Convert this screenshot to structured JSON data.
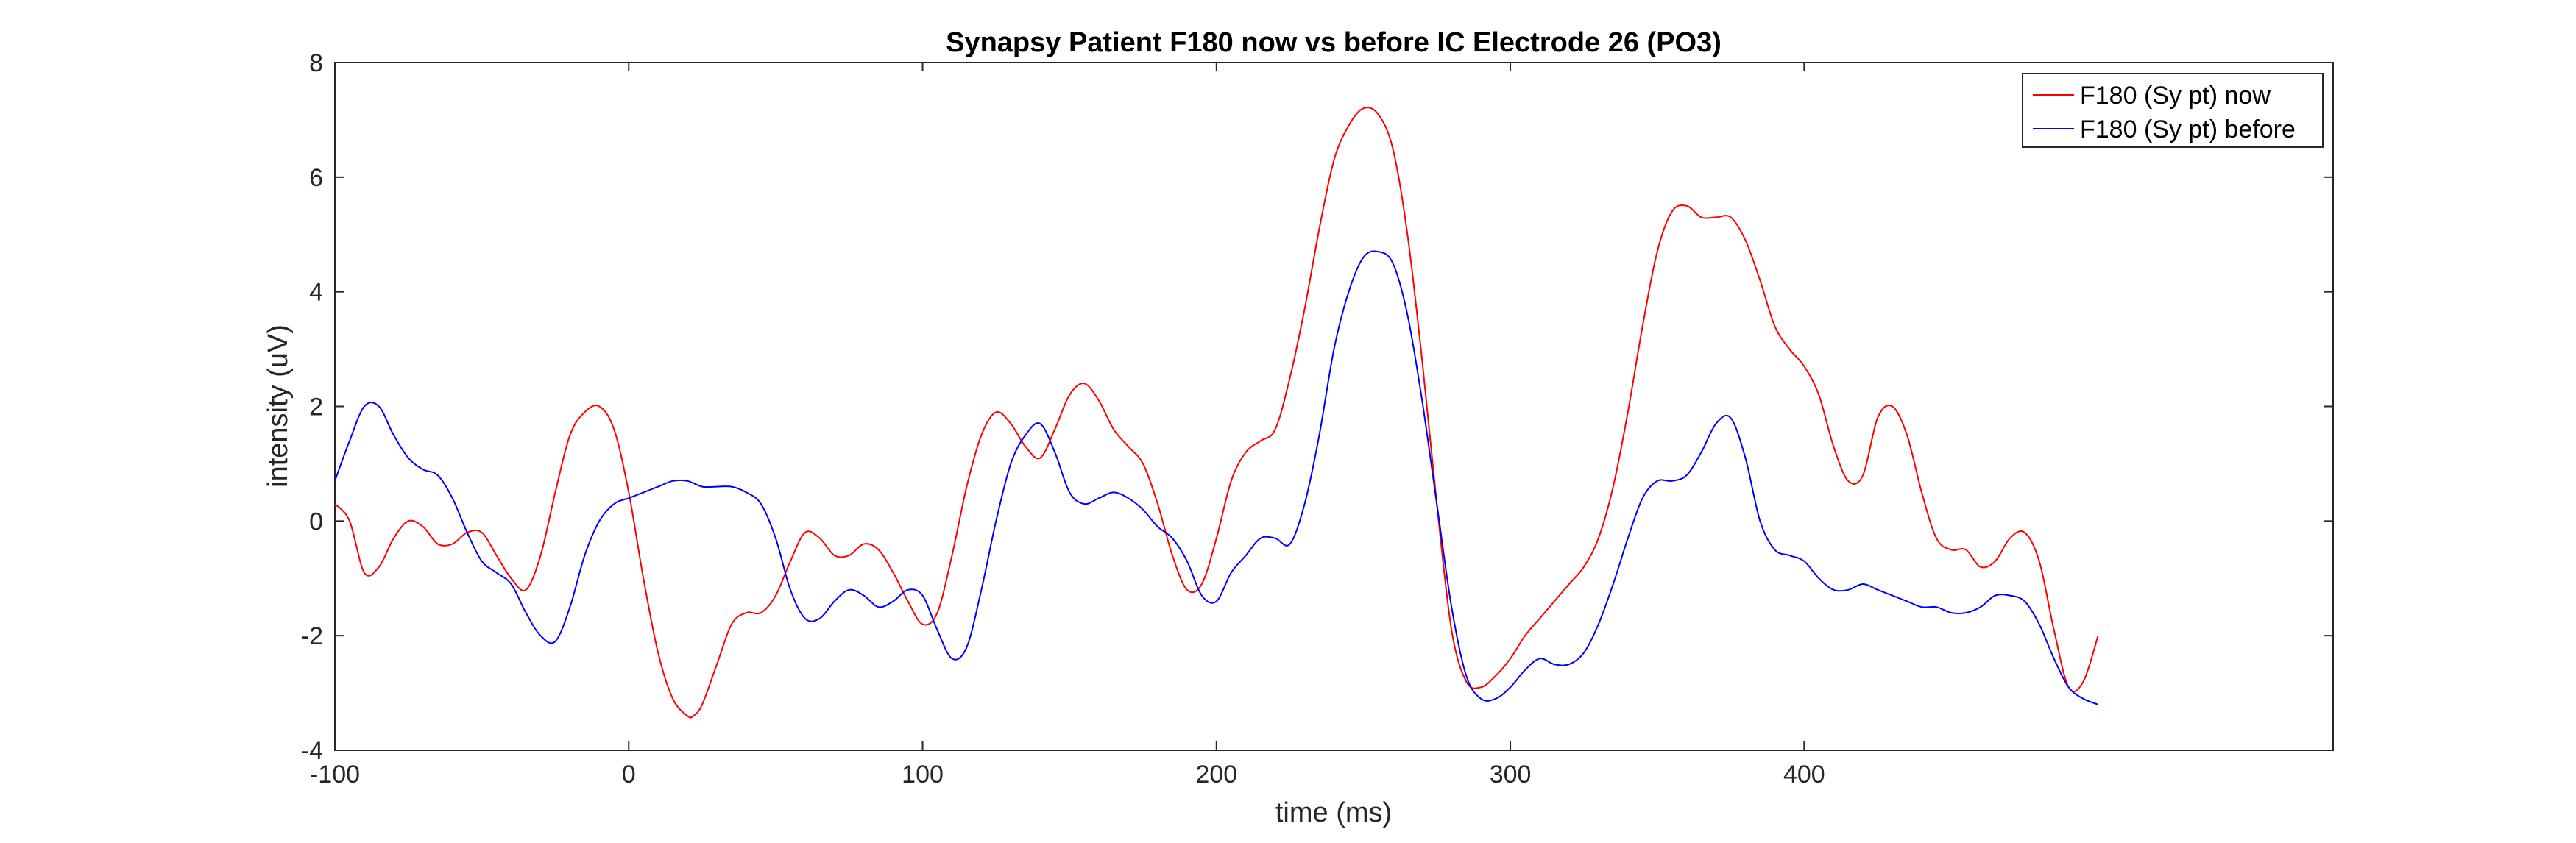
{
  "chart_data": {
    "type": "line",
    "title": "Synapsy Patient F180 now vs before IC Electrode 26 (PO3)",
    "xlabel": "time (ms)",
    "ylabel": "intensity (uV)",
    "xlim": [
      -100,
      580
    ],
    "ylim": [
      -4,
      8
    ],
    "xticks": [
      -100,
      0,
      100,
      200,
      300,
      400
    ],
    "yticks": [
      -4,
      -2,
      0,
      2,
      4,
      6,
      8
    ],
    "grid": false,
    "legend_position": "top-right",
    "series": [
      {
        "name": "F180 (Sy pt) now",
        "color": "#ff0000",
        "x": [
          -100,
          -95,
          -90,
          -85,
          -80,
          -75,
          -70,
          -65,
          -60,
          -55,
          -50,
          -45,
          -40,
          -35,
          -30,
          -25,
          -20,
          -15,
          -10,
          -5,
          0,
          5,
          10,
          15,
          20,
          22,
          25,
          30,
          35,
          40,
          45,
          50,
          55,
          60,
          65,
          70,
          75,
          80,
          85,
          90,
          95,
          100,
          105,
          110,
          115,
          120,
          125,
          130,
          135,
          140,
          145,
          150,
          155,
          160,
          165,
          170,
          175,
          180,
          185,
          190,
          195,
          200,
          205,
          210,
          215,
          220,
          225,
          230,
          235,
          240,
          245,
          250,
          255,
          260,
          265,
          270,
          275,
          280,
          285,
          290,
          295,
          300,
          305,
          310,
          315,
          320,
          325,
          330,
          335,
          340,
          345,
          350,
          355,
          360,
          365,
          370,
          375,
          380,
          385,
          390,
          395,
          400,
          405,
          410,
          415,
          420,
          425,
          430,
          435,
          440,
          445,
          450,
          455,
          460,
          465,
          470,
          475,
          480,
          485,
          490,
          495,
          500
        ],
        "y": [
          0.3,
          0.0,
          -0.9,
          -0.8,
          -0.3,
          0.0,
          -0.1,
          -0.4,
          -0.4,
          -0.2,
          -0.2,
          -0.6,
          -1.0,
          -1.2,
          -0.6,
          0.5,
          1.5,
          1.9,
          2.0,
          1.6,
          0.5,
          -1.0,
          -2.3,
          -3.1,
          -3.4,
          -3.4,
          -3.2,
          -2.5,
          -1.8,
          -1.6,
          -1.6,
          -1.3,
          -0.7,
          -0.2,
          -0.3,
          -0.6,
          -0.6,
          -0.4,
          -0.5,
          -0.9,
          -1.4,
          -1.8,
          -1.6,
          -0.6,
          0.6,
          1.5,
          1.9,
          1.7,
          1.3,
          1.1,
          1.6,
          2.2,
          2.4,
          2.1,
          1.6,
          1.3,
          1.0,
          0.3,
          -0.6,
          -1.2,
          -1.1,
          -0.3,
          0.7,
          1.2,
          1.4,
          1.6,
          2.5,
          3.7,
          5.1,
          6.3,
          6.9,
          7.2,
          7.1,
          6.5,
          5.0,
          2.8,
          0.3,
          -1.9,
          -2.8,
          -2.9,
          -2.7,
          -2.4,
          -2.0,
          -1.7,
          -1.4,
          -1.1,
          -0.8,
          -0.3,
          0.6,
          1.9,
          3.4,
          4.7,
          5.4,
          5.5,
          5.3,
          5.3,
          5.3,
          4.9,
          4.2,
          3.4,
          3.0,
          2.7,
          2.2,
          1.3,
          0.7,
          0.8,
          1.8,
          2.0,
          1.5,
          0.5,
          -0.3,
          -0.5,
          -0.5,
          -0.8,
          -0.7,
          -0.3,
          -0.2,
          -0.7,
          -1.9,
          -2.9,
          -2.8,
          -2.0
        ]
      },
      {
        "name": "F180 (Sy pt) before",
        "color": "#0000ff",
        "x": [
          -100,
          -95,
          -90,
          -85,
          -80,
          -75,
          -70,
          -65,
          -60,
          -55,
          -50,
          -45,
          -40,
          -35,
          -30,
          -25,
          -20,
          -15,
          -10,
          -5,
          0,
          5,
          10,
          15,
          20,
          25,
          30,
          35,
          40,
          45,
          50,
          55,
          60,
          65,
          70,
          75,
          80,
          85,
          90,
          95,
          100,
          105,
          110,
          115,
          120,
          125,
          130,
          135,
          140,
          145,
          150,
          155,
          160,
          165,
          170,
          175,
          180,
          185,
          190,
          195,
          200,
          205,
          210,
          215,
          220,
          225,
          230,
          235,
          240,
          245,
          250,
          255,
          260,
          265,
          270,
          275,
          280,
          285,
          290,
          295,
          300,
          305,
          310,
          315,
          320,
          325,
          330,
          335,
          340,
          345,
          350,
          355,
          360,
          365,
          370,
          375,
          380,
          385,
          390,
          395,
          400,
          405,
          410,
          415,
          420,
          425,
          430,
          435,
          440,
          445,
          450,
          455,
          460,
          465,
          470,
          475,
          480,
          485,
          490,
          495,
          500
        ],
        "y": [
          0.7,
          1.4,
          2.0,
          2.0,
          1.5,
          1.1,
          0.9,
          0.8,
          0.4,
          -0.2,
          -0.7,
          -0.9,
          -1.1,
          -1.6,
          -2.0,
          -2.1,
          -1.5,
          -0.6,
          0.0,
          0.3,
          0.4,
          0.5,
          0.6,
          0.7,
          0.7,
          0.6,
          0.6,
          0.6,
          0.5,
          0.3,
          -0.3,
          -1.2,
          -1.7,
          -1.7,
          -1.4,
          -1.2,
          -1.3,
          -1.5,
          -1.4,
          -1.2,
          -1.3,
          -1.9,
          -2.4,
          -2.2,
          -1.2,
          0.0,
          1.0,
          1.5,
          1.7,
          1.2,
          0.5,
          0.3,
          0.4,
          0.5,
          0.4,
          0.2,
          -0.1,
          -0.3,
          -0.7,
          -1.3,
          -1.4,
          -0.9,
          -0.6,
          -0.3,
          -0.3,
          -0.4,
          0.3,
          1.5,
          3.0,
          4.0,
          4.6,
          4.7,
          4.5,
          3.6,
          2.1,
          0.3,
          -1.5,
          -2.7,
          -3.1,
          -3.1,
          -2.9,
          -2.6,
          -2.4,
          -2.5,
          -2.5,
          -2.3,
          -1.8,
          -1.1,
          -0.3,
          0.4,
          0.7,
          0.7,
          0.8,
          1.2,
          1.7,
          1.8,
          1.1,
          0.0,
          -0.5,
          -0.6,
          -0.7,
          -1.0,
          -1.2,
          -1.2,
          -1.1,
          -1.2,
          -1.3,
          -1.4,
          -1.5,
          -1.5,
          -1.6,
          -1.6,
          -1.5,
          -1.3,
          -1.3,
          -1.4,
          -1.8,
          -2.4,
          -2.9,
          -3.1,
          -3.2
        ]
      }
    ]
  }
}
